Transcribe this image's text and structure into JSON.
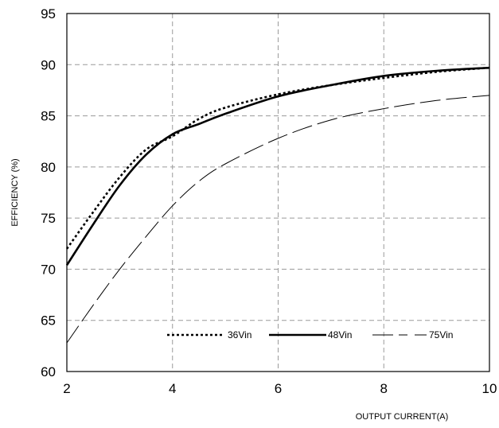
{
  "chart_data": {
    "type": "line",
    "title": "",
    "xlabel": "OUTPUT CURRENT(A)",
    "ylabel": "EFFICIENCY (%)",
    "xlim": [
      2,
      10
    ],
    "ylim": [
      60,
      95
    ],
    "xticks": [
      2,
      4,
      6,
      8,
      10
    ],
    "yticks": [
      60,
      65,
      70,
      75,
      80,
      85,
      90,
      95
    ],
    "grid": true,
    "legend_position": "bottom-center",
    "series": [
      {
        "name": "36Vin",
        "style": "dotted",
        "color": "#000000",
        "x": [
          2,
          2.5,
          3,
          3.5,
          4,
          4.5,
          5,
          6,
          7,
          8,
          9,
          10
        ],
        "y": [
          72,
          75.6,
          79,
          81.7,
          83,
          84.7,
          85.8,
          87.1,
          88.0,
          88.7,
          89.3,
          89.7
        ]
      },
      {
        "name": "48Vin",
        "style": "solid",
        "color": "#000000",
        "x": [
          2,
          2.5,
          3,
          3.5,
          4,
          4.5,
          5,
          6,
          7,
          8,
          9,
          10
        ],
        "y": [
          70.4,
          74.4,
          78.2,
          81.2,
          83.2,
          84.2,
          85.2,
          86.9,
          88.0,
          88.9,
          89.4,
          89.7
        ]
      },
      {
        "name": "75Vin",
        "style": "dashed",
        "color": "#000000",
        "x": [
          2,
          2.5,
          3,
          3.5,
          4,
          4.5,
          5,
          6,
          7,
          8,
          9,
          10
        ],
        "y": [
          62.8,
          66.5,
          70,
          73.2,
          76.2,
          78.6,
          80.3,
          82.8,
          84.6,
          85.7,
          86.5,
          87.0
        ]
      }
    ]
  }
}
